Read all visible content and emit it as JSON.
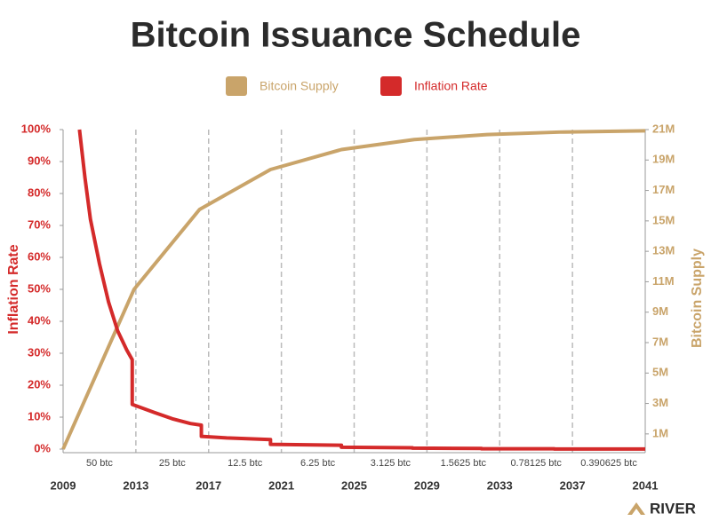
{
  "chart_data": {
    "type": "line",
    "title": "Bitcoin Issuance Schedule",
    "y_label": "Inflation Rate",
    "y2_label": "Bitcoin Supply",
    "xlim": [
      2009,
      2041
    ],
    "xticks": [
      2009,
      2013,
      2017,
      2021,
      2025,
      2029,
      2033,
      2037,
      2041
    ],
    "ylim": [
      0,
      100
    ],
    "yticks": [
      {
        "value": 0,
        "label": "0%"
      },
      {
        "value": 10,
        "label": "10%"
      },
      {
        "value": 20,
        "label": "20%"
      },
      {
        "value": 30,
        "label": "30%"
      },
      {
        "value": 40,
        "label": "40%"
      },
      {
        "value": 50,
        "label": "50%"
      },
      {
        "value": 60,
        "label": "60%"
      },
      {
        "value": 70,
        "label": "70%"
      },
      {
        "value": 80,
        "label": "80%"
      },
      {
        "value": 90,
        "label": "90%"
      },
      {
        "value": 100,
        "label": "100%"
      }
    ],
    "y2lim": [
      0,
      21000000
    ],
    "y2ticks": [
      {
        "value": 1000000,
        "label": "1M"
      },
      {
        "value": 3000000,
        "label": "3M"
      },
      {
        "value": 5000000,
        "label": "5M"
      },
      {
        "value": 7000000,
        "label": "7M"
      },
      {
        "value": 9000000,
        "label": "9M"
      },
      {
        "value": 11000000,
        "label": "11M"
      },
      {
        "value": 13000000,
        "label": "13M"
      },
      {
        "value": 15000000,
        "label": "15M"
      },
      {
        "value": 17000000,
        "label": "17M"
      },
      {
        "value": 19000000,
        "label": "19M"
      },
      {
        "value": 21000000,
        "label": "21M"
      }
    ],
    "grid": true,
    "annotations": [
      "50 btc",
      "25 btc",
      "12.5 btc",
      "6.25 btc",
      "3.125 btc",
      "1.5625 btc",
      "0.78125 btc",
      "0.390625 btc"
    ],
    "series": [
      {
        "name": "Bitcoin Supply",
        "color": "#c9a46a",
        "axis": "y2",
        "x": [
          2009,
          2012.9,
          2016.5,
          2020.4,
          2024.3,
          2028.3,
          2032.3,
          2036.3,
          2041
        ],
        "values": [
          0,
          10500000,
          15750000,
          18375000,
          19687500,
          20343750,
          20671875,
          20835937,
          20917968
        ]
      },
      {
        "name": "Inflation Rate",
        "color": "#d42a2a",
        "x": [
          2009.9,
          2010.2,
          2010.5,
          2011,
          2011.5,
          2012,
          2012.5,
          2012.8,
          2012.8,
          2014,
          2015,
          2016,
          2016.6,
          2016.6,
          2018,
          2020.4,
          2020.4,
          2024.3,
          2024.3,
          2028.2,
          2028.2,
          2032,
          2032,
          2036,
          2036,
          2041
        ],
        "values": [
          100,
          85,
          72,
          58,
          46,
          37,
          31,
          28,
          14,
          11.5,
          9.5,
          8,
          7.5,
          4,
          3.5,
          3,
          1.5,
          1.2,
          0.6,
          0.4,
          0.3,
          0.2,
          0.1,
          0.1,
          0.05,
          0.05
        ]
      }
    ]
  },
  "brand": "RIVER"
}
